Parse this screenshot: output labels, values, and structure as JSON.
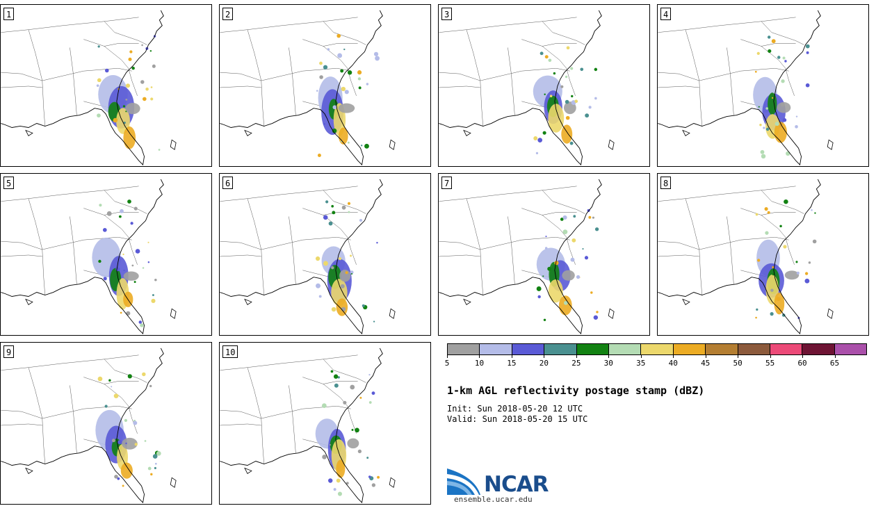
{
  "panels": [
    {
      "label": "1"
    },
    {
      "label": "2"
    },
    {
      "label": "3"
    },
    {
      "label": "4"
    },
    {
      "label": "5"
    },
    {
      "label": "6"
    },
    {
      "label": "7"
    },
    {
      "label": "8"
    },
    {
      "label": "9"
    },
    {
      "label": "10"
    }
  ],
  "colorbar": {
    "colors": [
      "#a0a0a0",
      "#b4bce8",
      "#5a5ad6",
      "#4a9090",
      "#128212",
      "#b4dcb4",
      "#ecd86c",
      "#ecac24",
      "#b47e32",
      "#8c5a3c",
      "#ec4a78",
      "#6e1434",
      "#aa50aa"
    ],
    "ticks": [
      "5",
      "10",
      "15",
      "20",
      "25",
      "30",
      "35",
      "40",
      "45",
      "50",
      "55",
      "60",
      "65"
    ]
  },
  "title": "1-km AGL reflectivity postage stamp (dBZ)",
  "init_label": "Init: Sun 2018-05-20 12 UTC",
  "valid_label": "Valid: Sun 2018-05-20 15 UTC",
  "logo": {
    "name": "NCAR",
    "url": "ensemble.ucar.edu"
  }
}
